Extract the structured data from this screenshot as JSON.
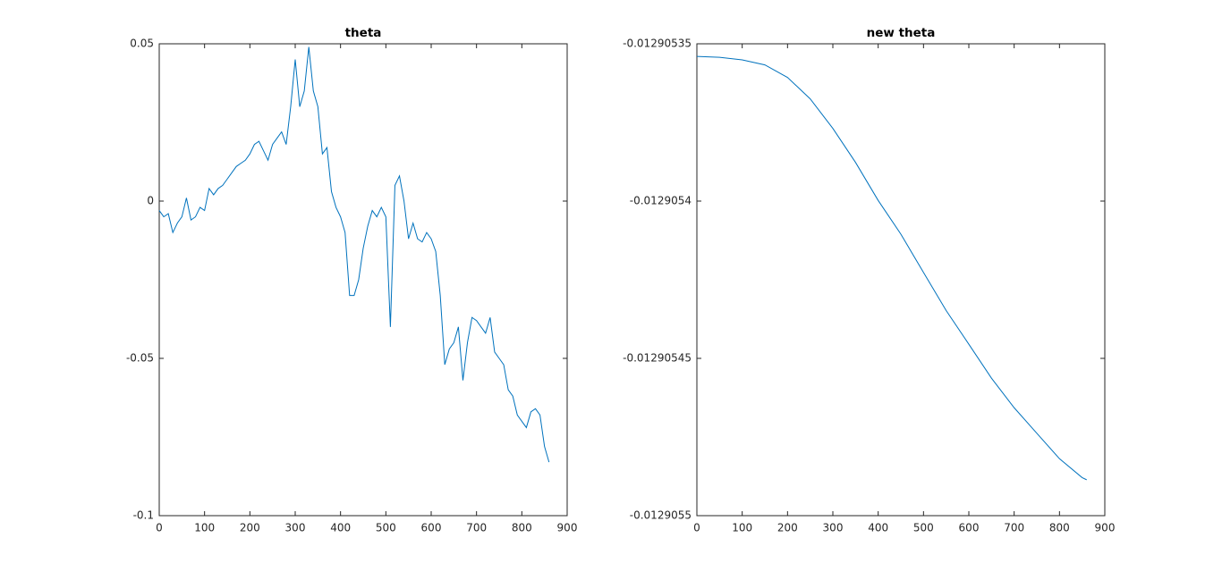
{
  "chart_data": [
    {
      "type": "line",
      "title": "theta",
      "color": "#0072bd",
      "x": [
        0,
        10,
        20,
        30,
        40,
        50,
        60,
        70,
        80,
        90,
        100,
        110,
        120,
        130,
        140,
        150,
        160,
        170,
        180,
        190,
        200,
        210,
        220,
        230,
        240,
        250,
        260,
        270,
        280,
        290,
        300,
        310,
        320,
        330,
        340,
        350,
        360,
        370,
        380,
        390,
        400,
        410,
        420,
        430,
        440,
        450,
        460,
        470,
        480,
        490,
        500,
        510,
        520,
        530,
        540,
        550,
        560,
        570,
        580,
        590,
        600,
        610,
        620,
        630,
        640,
        650,
        660,
        670,
        680,
        690,
        700,
        710,
        720,
        730,
        740,
        750,
        760,
        770,
        780,
        790,
        800,
        810,
        820,
        830,
        840,
        850,
        860
      ],
      "values": [
        -0.003,
        -0.005,
        -0.004,
        -0.01,
        -0.007,
        -0.005,
        0.001,
        -0.006,
        -0.005,
        -0.002,
        -0.003,
        0.004,
        0.002,
        0.004,
        0.005,
        0.007,
        0.009,
        0.011,
        0.012,
        0.013,
        0.015,
        0.018,
        0.019,
        0.016,
        0.013,
        0.018,
        0.02,
        0.022,
        0.018,
        0.03,
        0.045,
        0.03,
        0.035,
        0.049,
        0.035,
        0.03,
        0.015,
        0.017,
        0.003,
        -0.002,
        -0.005,
        -0.01,
        -0.03,
        -0.03,
        -0.025,
        -0.015,
        -0.008,
        -0.003,
        -0.005,
        -0.002,
        -0.005,
        -0.04,
        0.005,
        0.008,
        0.0,
        -0.012,
        -0.007,
        -0.012,
        -0.013,
        -0.01,
        -0.012,
        -0.016,
        -0.03,
        -0.052,
        -0.047,
        -0.045,
        -0.04,
        -0.057,
        -0.045,
        -0.037,
        -0.038,
        -0.04,
        -0.042,
        -0.037,
        -0.048,
        -0.05,
        -0.052,
        -0.06,
        -0.062,
        -0.068,
        -0.07,
        -0.072,
        -0.067,
        -0.066,
        -0.068,
        -0.078,
        -0.083
      ],
      "xlim": [
        0,
        900
      ],
      "xticks": [
        0,
        100,
        200,
        300,
        400,
        500,
        600,
        700,
        800,
        900
      ],
      "ylim": [
        -0.1,
        0.05
      ],
      "yticks": [
        -0.1,
        -0.05,
        0,
        0.05
      ]
    },
    {
      "type": "line",
      "title": "new theta",
      "color": "#0072bd",
      "x": [
        0,
        50,
        100,
        150,
        200,
        250,
        300,
        350,
        400,
        450,
        500,
        550,
        600,
        650,
        700,
        750,
        800,
        850,
        860
      ],
      "values": [
        -0.012905354,
        -0.0129053543,
        -0.0129053551,
        -0.0129053567,
        -0.0129053607,
        -0.0129053675,
        -0.0129053769,
        -0.0129053877,
        -0.0129053998,
        -0.0129054105,
        -0.0129054227,
        -0.0129054348,
        -0.0129054455,
        -0.0129054563,
        -0.0129054657,
        -0.0129054738,
        -0.0129054819,
        -0.0129054879,
        -0.0129054886
      ],
      "xlim": [
        0,
        900
      ],
      "xticks": [
        0,
        100,
        200,
        300,
        400,
        500,
        600,
        700,
        800,
        900
      ],
      "ylim": [
        -0.0129055,
        -0.01290535
      ],
      "yticks": [
        -0.0129055,
        -0.01290545,
        -0.0129054,
        -0.01290535
      ]
    }
  ]
}
